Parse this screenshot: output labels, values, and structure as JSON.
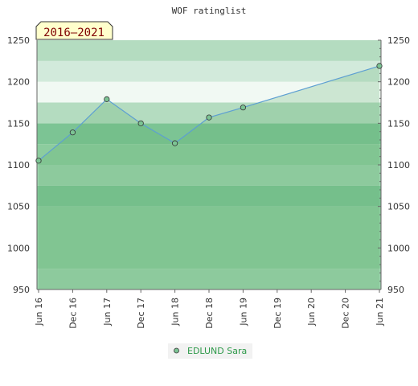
{
  "chart_data": {
    "type": "area",
    "title": "WOF ratinglist",
    "period_label": "2016–2021",
    "xlabel": "",
    "ylabel": "",
    "ylim": [
      950,
      1250
    ],
    "y_ticks": [
      950,
      1000,
      1050,
      1100,
      1150,
      1200,
      1250
    ],
    "x_ticks": [
      "Jun 16",
      "Dec 16",
      "Jun 17",
      "Dec 17",
      "Jun 18",
      "Dec 18",
      "Jun 19",
      "Dec 19",
      "Jun 20",
      "Dec 20",
      "Jun 21"
    ],
    "bands": [
      {
        "from": 950,
        "to": 975,
        "color": "#9cd3ad"
      },
      {
        "from": 975,
        "to": 1050,
        "color": "#8ccc9e"
      },
      {
        "from": 1050,
        "to": 1075,
        "color": "#7cc494"
      },
      {
        "from": 1075,
        "to": 1100,
        "color": "#9cd3ad"
      },
      {
        "from": 1100,
        "to": 1125,
        "color": "#8ccc9e"
      },
      {
        "from": 1125,
        "to": 1150,
        "color": "#7cc494"
      },
      {
        "from": 1150,
        "to": 1175,
        "color": "#b4dcc0"
      },
      {
        "from": 1175,
        "to": 1200,
        "color": "#f1f9f3"
      },
      {
        "from": 1200,
        "to": 1225,
        "color": "#d2eadb"
      },
      {
        "from": 1225,
        "to": 1250,
        "color": "#b4dcc0"
      }
    ],
    "series": [
      {
        "name": "EDLUND Sara",
        "color": "#5d9fd2",
        "marker_color": "#7cc494",
        "x": [
          "Jun 16",
          "Dec 16",
          "Jun 17",
          "Dec 17",
          "Jun 18",
          "Dec 18",
          "Jun 19",
          "Jun 21"
        ],
        "values": [
          1105,
          1139,
          1179,
          1150,
          1126,
          1157,
          1169,
          1219
        ]
      }
    ],
    "legend_position": "bottom-center",
    "grid": false
  }
}
